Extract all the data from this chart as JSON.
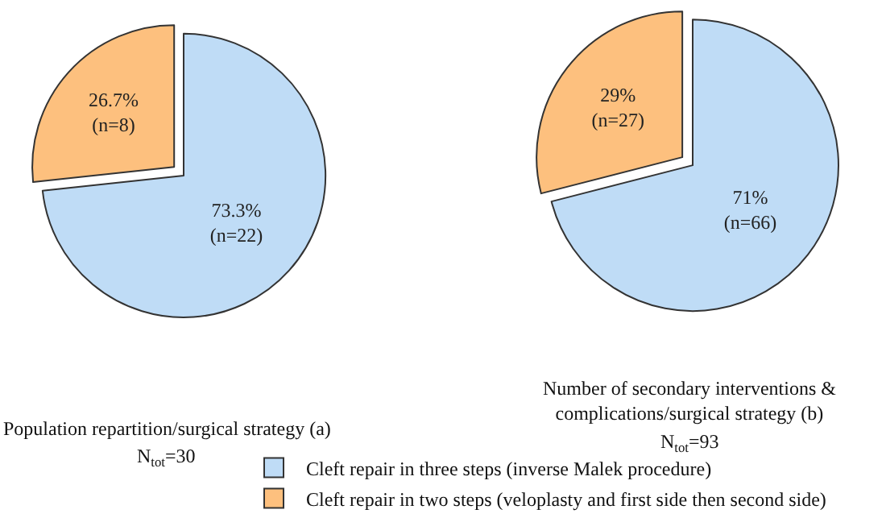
{
  "chart_data": [
    {
      "type": "pie",
      "title": "Population repartition/surgical strategy (a)",
      "subtitle": "N$_{tot}$=30",
      "categories": [
        "Cleft repair in three steps (inverse Malek procedure)",
        "Cleft repair in two steps (veloplasty and first side then second side)"
      ],
      "values": [
        73.3,
        26.7
      ],
      "colors": [
        "#bfdcf6",
        "#fdc07e"
      ],
      "value_labels": [
        "73.3% (n=22)",
        "26.7% (n=8)"
      ],
      "legend": "bottom"
    },
    {
      "type": "pie",
      "title": "Number of secondary interventions & complications/surgical strategy (b)",
      "subtitle": "N$_{tot}$=93",
      "categories": [
        null,
        null
      ],
      "values": [
        71,
        29
      ],
      "colors": [
        "#bfdcf6",
        "#fdc07e"
      ],
      "value_labels": [
        "71% (n=66)",
        "29% (n=27)"
      ]
    }
  ]
}
